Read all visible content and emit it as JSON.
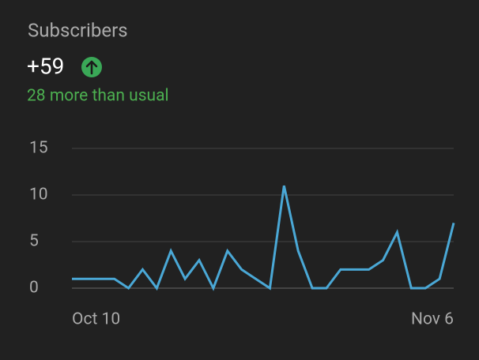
{
  "chart_data": {
    "type": "line",
    "title": "Subscribers",
    "headline": "+59",
    "subtitle": "28 more than usual",
    "categories": [
      "Oct 10",
      null,
      null,
      null,
      null,
      null,
      null,
      null,
      null,
      null,
      null,
      null,
      null,
      null,
      null,
      null,
      null,
      null,
      null,
      null,
      null,
      null,
      null,
      null,
      null,
      null,
      null,
      "Nov 6"
    ],
    "values": [
      1,
      1,
      1,
      1,
      0,
      2,
      0,
      4,
      1,
      3,
      0,
      4,
      2,
      1,
      0,
      11,
      4,
      0,
      0,
      2,
      2,
      2,
      3,
      6,
      0,
      0,
      1,
      7
    ],
    "color": "#4aa8d6",
    "ylim": [
      0,
      15
    ],
    "yticks": [
      0,
      5,
      10,
      15
    ],
    "grid": true
  }
}
